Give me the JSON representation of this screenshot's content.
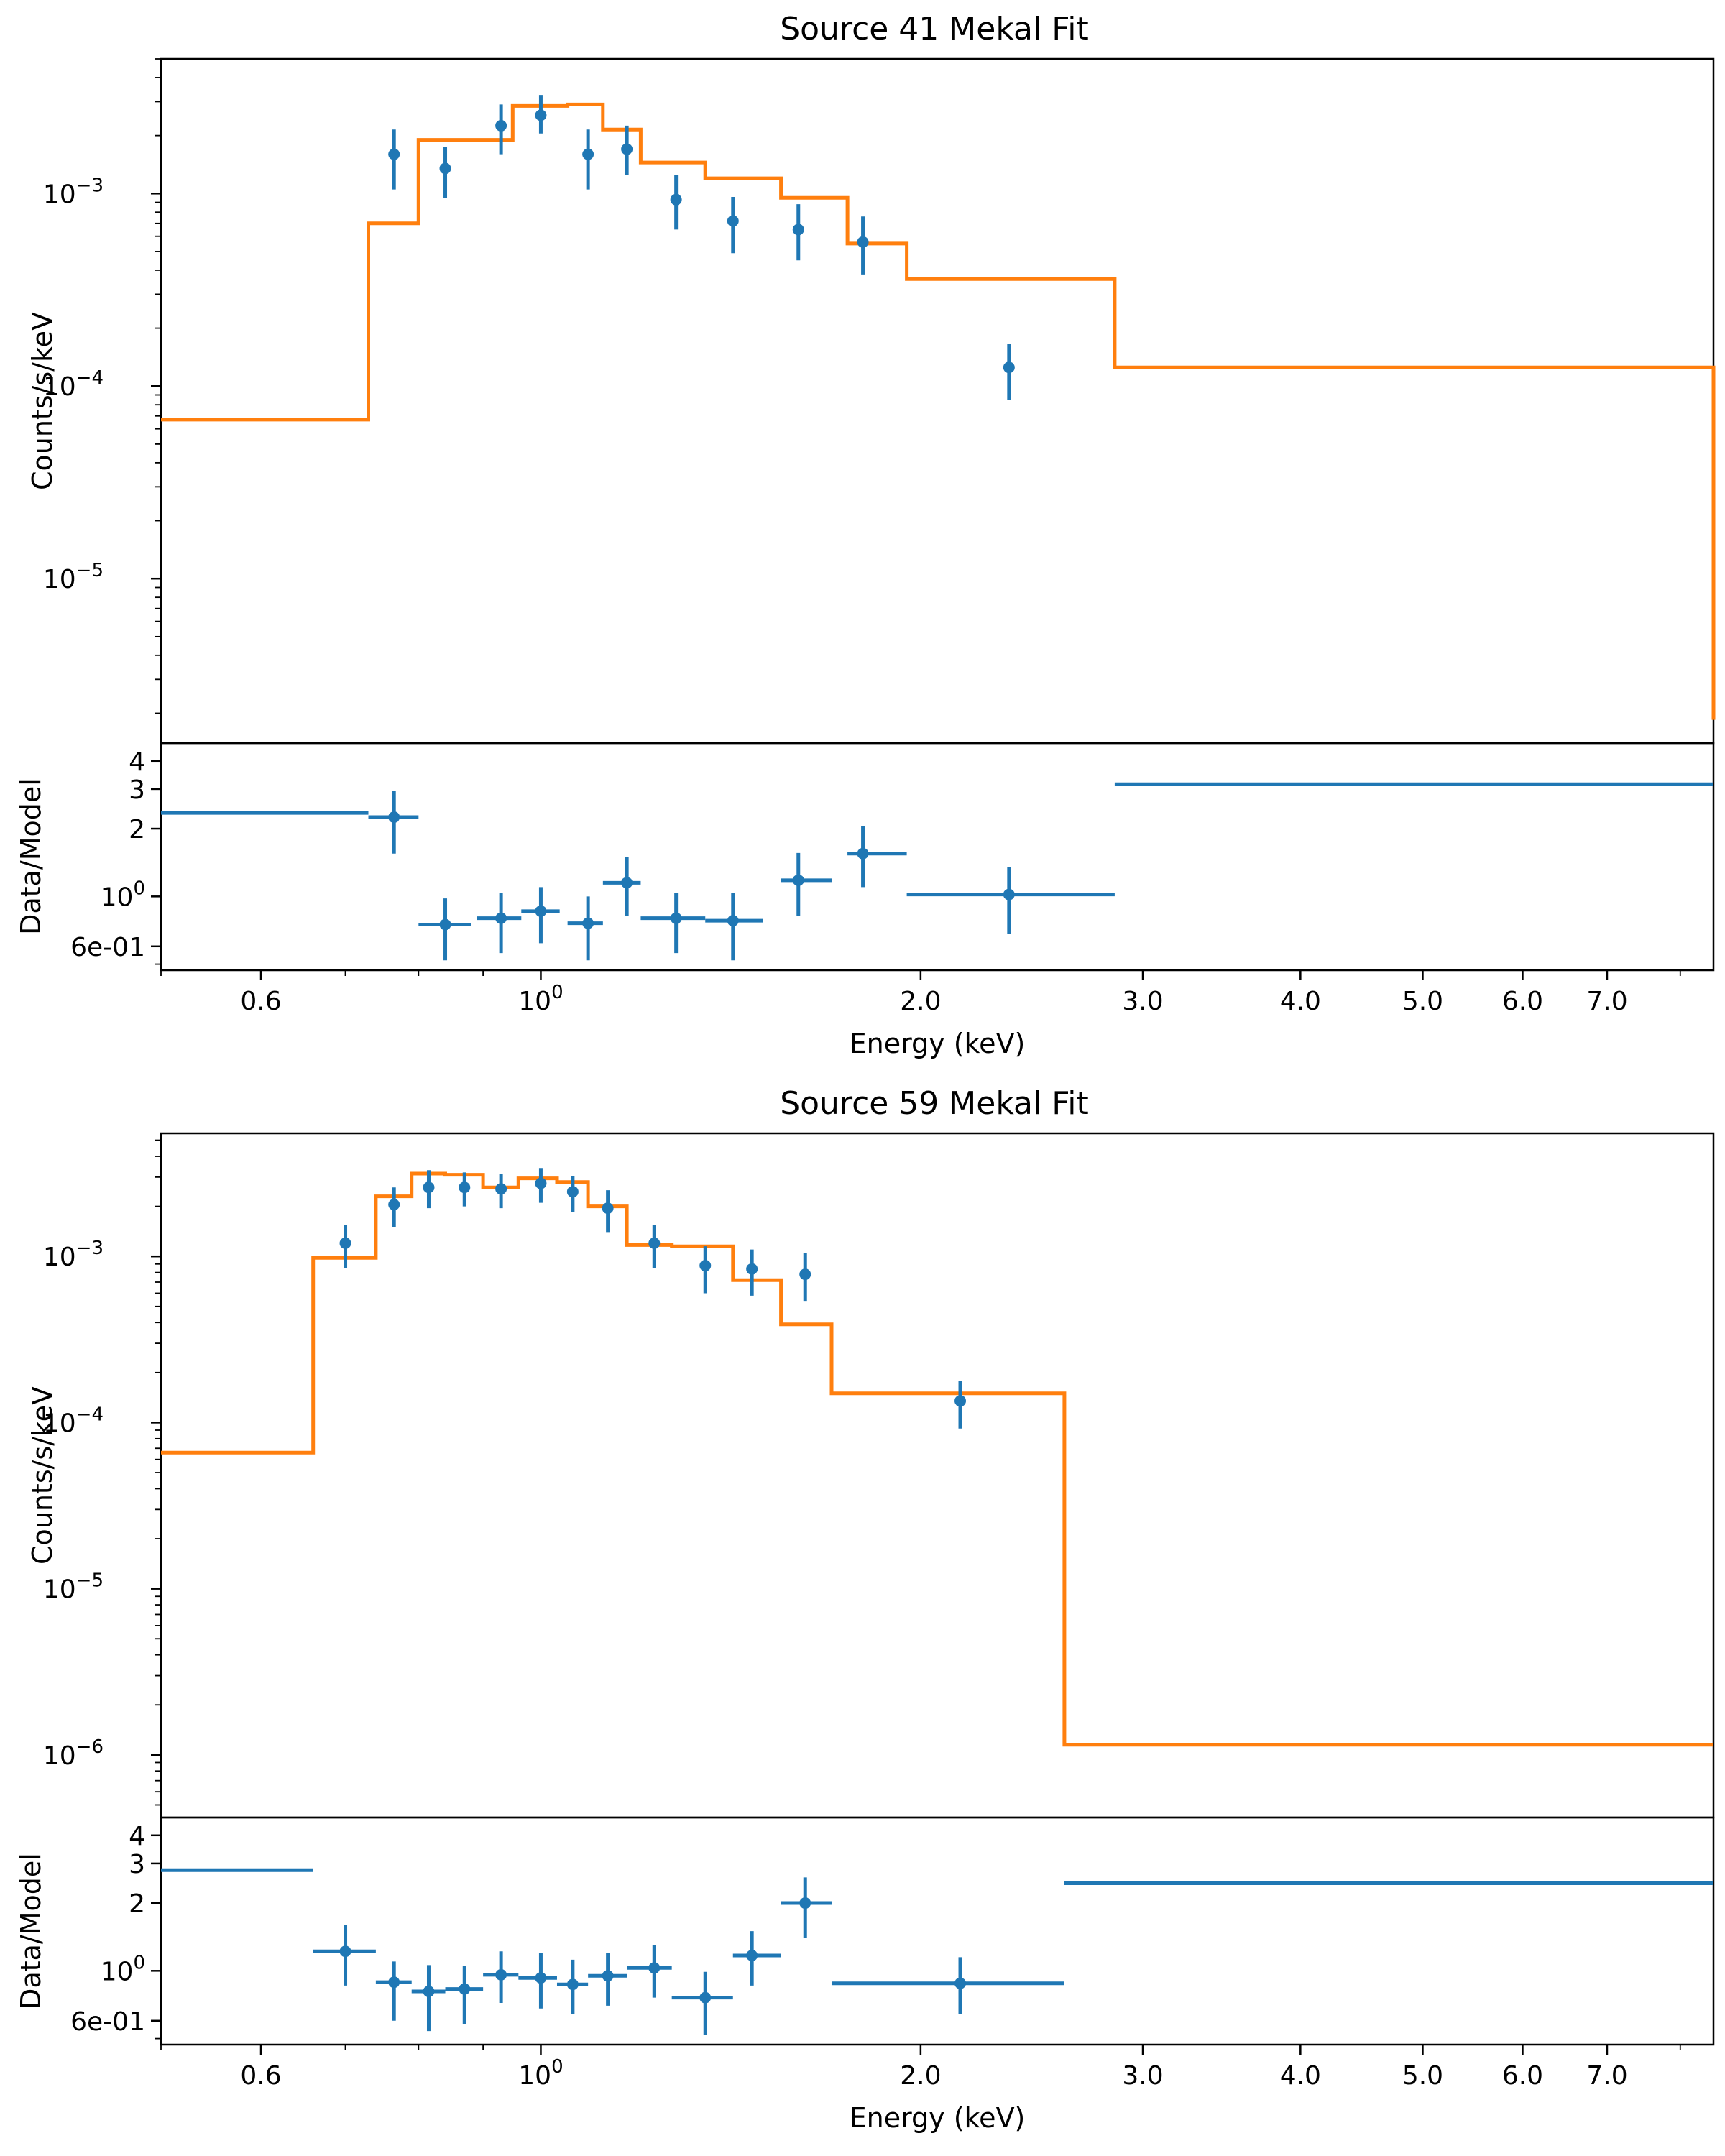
{
  "chart_data": [
    {
      "type": "line",
      "title": "Source 41 Mekal Fit",
      "xlabel": "Energy (keV)",
      "xscale": "log",
      "xlim": [
        0.5,
        8.5
      ],
      "xticks": [
        {
          "value": 0.6,
          "label": "0.6"
        },
        {
          "value": 1.0,
          "label": "10",
          "sup": "0"
        },
        {
          "value": 2.0,
          "label": "2.0"
        },
        {
          "value": 3.0,
          "label": "3.0"
        },
        {
          "value": 4.0,
          "label": "4.0"
        },
        {
          "value": 5.0,
          "label": "5.0"
        },
        {
          "value": 6.0,
          "label": "6.0"
        },
        {
          "value": 7.0,
          "label": "7.0"
        }
      ],
      "spectrum": {
        "ylabel": "Counts/s/keV",
        "yscale": "log",
        "ylim": [
          1.4e-06,
          0.005
        ],
        "yticks": [
          {
            "value": 0.001,
            "label": "10",
            "sup": "−3"
          },
          {
            "value": 0.0001,
            "label": "10",
            "sup": "−4"
          },
          {
            "value": 1e-05,
            "label": "10",
            "sup": "−5"
          }
        ],
        "data": {
          "name": "Data",
          "color": "#1f77b4",
          "x": [
            0.765,
            0.84,
            0.93,
            1.0,
            1.09,
            1.17,
            1.28,
            1.42,
            1.6,
            1.8,
            2.35
          ],
          "y": [
            0.0016,
            0.00135,
            0.00225,
            0.00255,
            0.0016,
            0.0017,
            0.00093,
            0.00072,
            0.00065,
            0.00056,
            0.000125
          ],
          "yerr_low": [
            0.00105,
            0.00095,
            0.0016,
            0.00205,
            0.00105,
            0.00125,
            0.00065,
            0.00049,
            0.00045,
            0.00038,
            8.5e-05
          ],
          "yerr_high": [
            0.00215,
            0.00175,
            0.0029,
            0.00325,
            0.00215,
            0.00225,
            0.00125,
            0.00096,
            0.00088,
            0.00076,
            0.000165
          ]
        },
        "model": {
          "name": "Mekal model",
          "color": "#ff7f0e",
          "edges": [
            0.5,
            0.73,
            0.8,
            0.95,
            1.05,
            1.12,
            1.2,
            1.35,
            1.55,
            1.75,
            1.95,
            2.85,
            8.5
          ],
          "values": [
            6.7e-05,
            0.0007,
            0.0019,
            0.00285,
            0.0029,
            0.00215,
            0.00145,
            0.0012,
            0.00095,
            0.00055,
            0.00036,
            0.000125,
            1.85e-06
          ]
        }
      },
      "ratio": {
        "ylabel": "Data/Model",
        "yscale": "log",
        "ylim": [
          0.47,
          4.8
        ],
        "yticks": [
          {
            "value": 4,
            "label": "4"
          },
          {
            "value": 3,
            "label": "3"
          },
          {
            "value": 2,
            "label": "2"
          },
          {
            "value": 1.0,
            "label": "10",
            "sup": "0"
          },
          {
            "value": 0.6,
            "label": "6e-01"
          }
        ],
        "points": {
          "x": [
            0.765,
            0.84,
            0.93,
            1.0,
            1.09,
            1.17,
            1.28,
            1.42,
            1.6,
            1.8,
            2.35
          ],
          "xlo": [
            0.73,
            0.8,
            0.89,
            0.965,
            1.05,
            1.12,
            1.2,
            1.35,
            1.55,
            1.75,
            1.95
          ],
          "xhi": [
            0.8,
            0.88,
            0.965,
            1.035,
            1.12,
            1.2,
            1.35,
            1.5,
            1.7,
            1.95,
            2.85
          ],
          "y": [
            2.25,
            0.75,
            0.8,
            0.86,
            0.76,
            1.15,
            0.8,
            0.78,
            1.18,
            1.55,
            1.02
          ],
          "ylo": [
            1.55,
            0.52,
            0.56,
            0.62,
            0.52,
            0.82,
            0.56,
            0.52,
            0.82,
            1.1,
            0.68
          ],
          "yhi": [
            2.95,
            0.98,
            1.04,
            1.1,
            1.0,
            1.5,
            1.04,
            1.04,
            1.56,
            2.05,
            1.35
          ]
        },
        "segments": [
          {
            "xlo": 0.5,
            "xhi": 0.73,
            "y": 2.35
          },
          {
            "xlo": 2.85,
            "xhi": 8.5,
            "y": 3.15
          }
        ]
      }
    },
    {
      "type": "line",
      "title": "Source 59 Mekal Fit",
      "xlabel": "Energy (keV)",
      "xscale": "log",
      "xlim": [
        0.5,
        8.5
      ],
      "xticks": [
        {
          "value": 0.6,
          "label": "0.6"
        },
        {
          "value": 1.0,
          "label": "10",
          "sup": "0"
        },
        {
          "value": 2.0,
          "label": "2.0"
        },
        {
          "value": 3.0,
          "label": "3.0"
        },
        {
          "value": 4.0,
          "label": "4.0"
        },
        {
          "value": 5.0,
          "label": "5.0"
        },
        {
          "value": 6.0,
          "label": "6.0"
        },
        {
          "value": 7.0,
          "label": "7.0"
        }
      ],
      "spectrum": {
        "ylabel": "Counts/s/keV",
        "yscale": "log",
        "ylim": [
          4.2e-07,
          0.0055
        ],
        "yticks": [
          {
            "value": 0.001,
            "label": "10",
            "sup": "−3"
          },
          {
            "value": 0.0001,
            "label": "10",
            "sup": "−4"
          },
          {
            "value": 1e-05,
            "label": "10",
            "sup": "−5"
          },
          {
            "value": 1e-06,
            "label": "10",
            "sup": "−6"
          }
        ],
        "data": {
          "name": "Data",
          "color": "#1f77b4",
          "x": [
            0.7,
            0.765,
            0.815,
            0.87,
            0.93,
            1.0,
            1.06,
            1.13,
            1.23,
            1.35,
            1.47,
            1.62,
            2.15
          ],
          "y": [
            0.0012,
            0.00205,
            0.0026,
            0.0026,
            0.00255,
            0.00275,
            0.00245,
            0.00195,
            0.0012,
            0.00088,
            0.00084,
            0.00078,
            0.000135
          ],
          "yerr_low": [
            0.00085,
            0.0015,
            0.00195,
            0.002,
            0.00195,
            0.0021,
            0.00185,
            0.0014,
            0.00085,
            0.0006,
            0.00058,
            0.00054,
            9.2e-05
          ],
          "yerr_high": [
            0.00155,
            0.0026,
            0.0033,
            0.0032,
            0.00315,
            0.0034,
            0.00305,
            0.0025,
            0.00155,
            0.00115,
            0.0011,
            0.00105,
            0.000178
          ]
        },
        "model": {
          "name": "Mekal model",
          "color": "#ff7f0e",
          "edges": [
            0.5,
            0.66,
            0.74,
            0.79,
            0.84,
            0.9,
            0.96,
            1.03,
            1.09,
            1.17,
            1.27,
            1.42,
            1.55,
            1.7,
            2.6,
            8.5
          ],
          "values": [
            6.6e-05,
            0.00098,
            0.0023,
            0.00315,
            0.0031,
            0.0026,
            0.00295,
            0.0028,
            0.002,
            0.00117,
            0.00115,
            0.00072,
            0.00039,
            0.00015,
            1.15e-06
          ]
        }
      },
      "ratio": {
        "ylabel": "Data/Model",
        "yscale": "log",
        "ylim": [
          0.47,
          4.8
        ],
        "yticks": [
          {
            "value": 4,
            "label": "4"
          },
          {
            "value": 3,
            "label": "3"
          },
          {
            "value": 2,
            "label": "2"
          },
          {
            "value": 1.0,
            "label": "10",
            "sup": "0"
          },
          {
            "value": 0.6,
            "label": "6e-01"
          }
        ],
        "points": {
          "x": [
            0.7,
            0.765,
            0.815,
            0.87,
            0.93,
            1.0,
            1.06,
            1.13,
            1.23,
            1.35,
            1.47,
            1.62,
            2.15
          ],
          "xlo": [
            0.66,
            0.74,
            0.79,
            0.84,
            0.9,
            0.96,
            1.03,
            1.09,
            1.17,
            1.27,
            1.42,
            1.55,
            1.7
          ],
          "xhi": [
            0.74,
            0.79,
            0.84,
            0.9,
            0.96,
            1.03,
            1.09,
            1.17,
            1.27,
            1.42,
            1.55,
            1.7,
            2.6
          ],
          "y": [
            1.22,
            0.89,
            0.81,
            0.83,
            0.96,
            0.93,
            0.87,
            0.95,
            1.03,
            0.76,
            1.17,
            2.0,
            0.88
          ],
          "ylo": [
            0.86,
            0.6,
            0.54,
            0.58,
            0.72,
            0.68,
            0.64,
            0.7,
            0.76,
            0.52,
            0.86,
            1.4,
            0.64
          ],
          "yhi": [
            1.6,
            1.1,
            1.06,
            1.05,
            1.22,
            1.2,
            1.12,
            1.2,
            1.3,
            0.99,
            1.5,
            2.6,
            1.15
          ]
        },
        "segments": [
          {
            "xlo": 0.5,
            "xhi": 0.66,
            "y": 2.8
          },
          {
            "xlo": 2.6,
            "xhi": 8.5,
            "y": 2.45
          }
        ]
      }
    }
  ]
}
